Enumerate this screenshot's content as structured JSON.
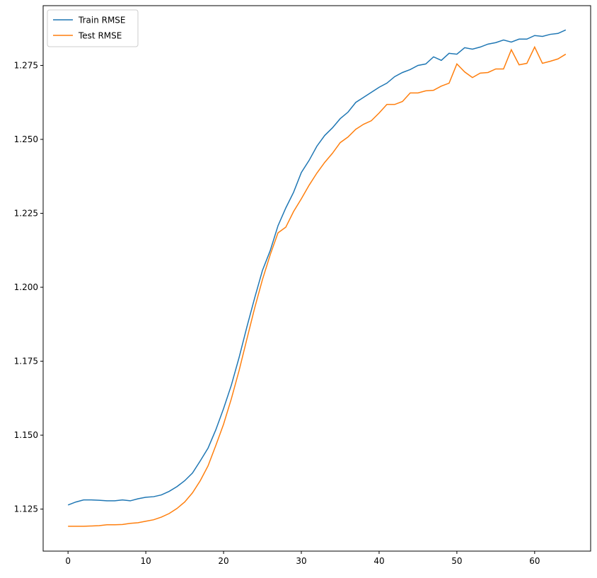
{
  "chart_data": {
    "type": "line",
    "x": [
      0,
      1,
      2,
      3,
      4,
      5,
      6,
      7,
      8,
      9,
      10,
      11,
      12,
      13,
      14,
      15,
      16,
      17,
      18,
      19,
      20,
      21,
      22,
      23,
      24,
      25,
      26,
      27,
      28,
      29,
      30,
      31,
      32,
      33,
      34,
      35,
      36,
      37,
      38,
      39,
      40,
      41,
      42,
      43,
      44,
      45,
      46,
      47,
      48,
      49,
      50,
      51,
      52,
      53,
      54,
      55,
      56,
      57,
      58,
      59,
      60,
      61,
      62,
      63,
      64
    ],
    "series": [
      {
        "name": "Train RMSE",
        "color": "#1f77b4",
        "values": [
          1.1264,
          1.1274,
          1.1281,
          1.1281,
          1.128,
          1.1278,
          1.1278,
          1.1281,
          1.1278,
          1.1285,
          1.129,
          1.1292,
          1.1298,
          1.131,
          1.1326,
          1.1346,
          1.1372,
          1.1413,
          1.1456,
          1.1518,
          1.159,
          1.1669,
          1.1763,
          1.1866,
          1.1964,
          1.2057,
          1.2124,
          1.2208,
          1.2268,
          1.2321,
          1.2388,
          1.2429,
          1.2477,
          1.2513,
          1.2539,
          1.257,
          1.2592,
          1.2625,
          1.2642,
          1.2659,
          1.2676,
          1.269,
          1.2712,
          1.2726,
          1.2736,
          1.275,
          1.2755,
          1.2779,
          1.2767,
          1.2791,
          1.2788,
          1.281,
          1.2805,
          1.2812,
          1.2822,
          1.2827,
          1.2836,
          1.2829,
          1.2839,
          1.2839,
          1.2851,
          1.2848,
          1.2855,
          1.2858,
          1.287
        ]
      },
      {
        "name": "Test RMSE",
        "color": "#ff7f0e",
        "values": [
          1.1192,
          1.1192,
          1.1192,
          1.1193,
          1.1194,
          1.1197,
          1.1197,
          1.1198,
          1.1202,
          1.1204,
          1.1209,
          1.1214,
          1.1223,
          1.1235,
          1.1252,
          1.1274,
          1.1305,
          1.1346,
          1.1396,
          1.1465,
          1.1537,
          1.1623,
          1.1719,
          1.1825,
          1.193,
          1.2026,
          1.211,
          1.2184,
          1.2203,
          1.2256,
          1.2299,
          1.2345,
          1.2386,
          1.2422,
          1.2453,
          1.2489,
          1.2508,
          1.2534,
          1.2551,
          1.2563,
          1.2589,
          1.2618,
          1.2618,
          1.2628,
          1.2657,
          1.2657,
          1.2664,
          1.2666,
          1.268,
          1.269,
          1.2755,
          1.2728,
          1.2709,
          1.2724,
          1.2726,
          1.2738,
          1.2738,
          1.2803,
          1.2752,
          1.2757,
          1.2812,
          1.2757,
          1.2764,
          1.2772,
          1.2788
        ]
      }
    ],
    "xlim": [
      -3.2,
      67.2
    ],
    "xticks": [
      0,
      10,
      20,
      30,
      40,
      50,
      60
    ],
    "ylim": [
      1.1108,
      1.2952
    ],
    "yticks": [
      1.125,
      {
        "value": 1.15,
        "label": "1.150"
      },
      1.175,
      {
        "value": 1.2,
        "label": "1.200"
      },
      1.225,
      {
        "value": 1.25,
        "label": "1.250"
      },
      1.275
    ],
    "legend": "upper left"
  }
}
